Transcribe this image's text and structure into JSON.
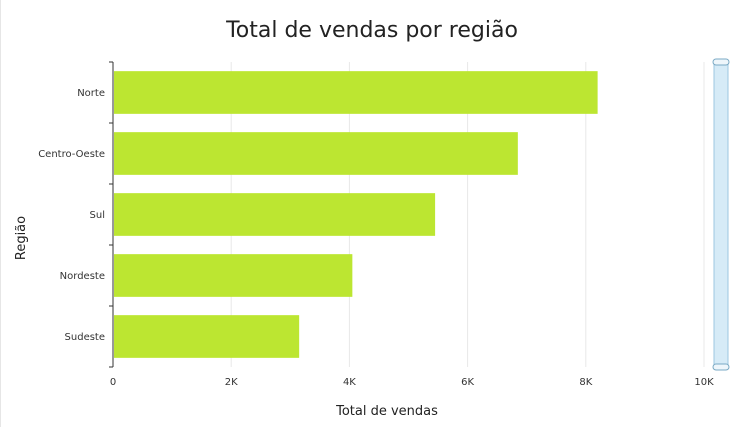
{
  "chart_data": {
    "type": "bar",
    "orientation": "horizontal",
    "title": "Total de vendas por região",
    "xlabel": "Total de vendas",
    "ylabel": "Região",
    "categories": [
      "Norte",
      "Centro-Oeste",
      "Sul",
      "Nordeste",
      "Sudeste"
    ],
    "values": [
      8200,
      6850,
      5450,
      4050,
      3150
    ],
    "xlim": [
      0,
      10000
    ],
    "xticks": [
      0,
      2000,
      4000,
      6000,
      8000,
      10000
    ],
    "xtick_labels": [
      "0",
      "2K",
      "4K",
      "6K",
      "8K",
      "10K"
    ],
    "grid": "vertical",
    "legend": "none"
  },
  "colors": {
    "bar": "#bce631",
    "grid": "#e8e8e8",
    "axis": "#333333",
    "scrollbar_track": "#d6ebf7",
    "scrollbar_border": "#9cc7e0"
  },
  "scrollbar": {
    "orientation": "vertical",
    "visible_fraction": 1.0
  }
}
